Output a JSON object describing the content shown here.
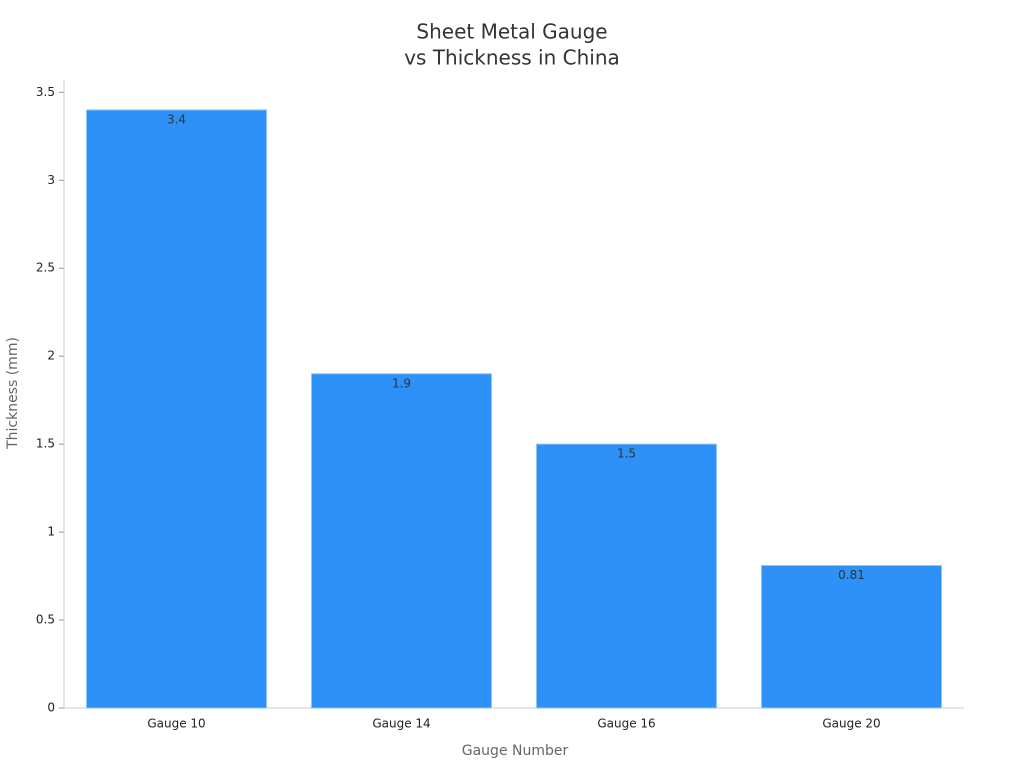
{
  "chart_data": {
    "type": "bar",
    "title": [
      "Sheet Metal Gauge",
      "vs Thickness in China"
    ],
    "x_label": "Gauge Number",
    "y_label": "Thickness (mm)",
    "categories": [
      "Gauge 10",
      "Gauge 14",
      "Gauge 16",
      "Gauge 20"
    ],
    "values": [
      3.4,
      1.9,
      1.5,
      0.81
    ],
    "color": "#2e91f7",
    "ylim": [
      0,
      3.57
    ],
    "yticks": [
      0,
      0.5,
      1,
      1.5,
      2,
      2.5,
      3,
      3.5
    ],
    "grid": false
  }
}
